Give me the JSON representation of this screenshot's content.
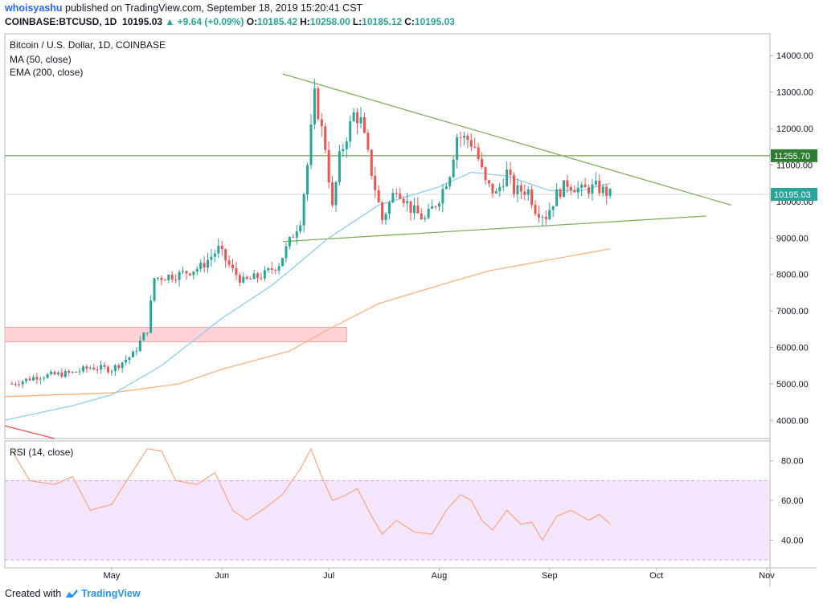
{
  "header": {
    "author": "whoisyashu",
    "published": "published on TradingView.com, September 18, 2019 15:20:41 CST",
    "symbol": "COINBASE:BTCUSD, 1D",
    "last": "10195.03",
    "change": "▲ +9.64 (+0.09%)",
    "o_label": "O:",
    "o_value": "10185.42",
    "h_label": "H:",
    "h_value": "10258.00",
    "l_label": "L:",
    "l_value": "10185.12",
    "c_label": "C:",
    "c_value": "10195.03"
  },
  "footer": {
    "created_with": "Created with",
    "brand": "TradingView"
  },
  "colors": {
    "up": "#26a69a",
    "down": "#ef5350",
    "ma50": "#8fcdf0",
    "ema200": "#ffb07a",
    "trendline": "#7fae5c",
    "resistance": "#4f8f2f",
    "support_zone": "#ffcdd2",
    "rsi": "#ffa47a",
    "rsi_band": "#f3e5fb"
  },
  "chart_data": [
    {
      "type": "candlestick",
      "title": "Bitcoin / U.S. Dollar, 1D, COINBASE",
      "indicators": [
        "MA (50, close)",
        "EMA (200, close)"
      ],
      "x_labels": [
        "May",
        "Jun",
        "Jul",
        "Aug",
        "Sep",
        "Oct",
        "Nov"
      ],
      "y_ticks": [
        4000,
        5000,
        6000,
        7000,
        8000,
        9000,
        10000,
        11000,
        12000,
        13000,
        14000
      ],
      "y_tick_labels": [
        "4000.00",
        "5000.00",
        "6000.00",
        "7000.00",
        "8000.00",
        "9000.00",
        "10000.00",
        "11000.00",
        "12000.00",
        "13000.00",
        "14000.00"
      ],
      "ylim": [
        3500,
        14600
      ],
      "last_price": 10195.03,
      "last_price_label": "10195.03",
      "resistance_level": 11255.7,
      "resistance_label": "11255.70",
      "support_zone": [
        6150,
        6550
      ],
      "anchors": [
        [
          "2019-04-03",
          5000
        ],
        [
          "2019-04-10",
          5200
        ],
        [
          "2019-04-20",
          5300
        ],
        [
          "2019-04-25",
          5450
        ],
        [
          "2019-05-01",
          5400
        ],
        [
          "2019-05-07",
          5800
        ],
        [
          "2019-05-11",
          6500
        ],
        [
          "2019-05-13",
          7900
        ],
        [
          "2019-05-20",
          8000
        ],
        [
          "2019-05-26",
          8200
        ],
        [
          "2019-05-31",
          8700
        ],
        [
          "2019-06-04",
          8100
        ],
        [
          "2019-06-07",
          7800
        ],
        [
          "2019-06-13",
          8000
        ],
        [
          "2019-06-17",
          8300
        ],
        [
          "2019-06-20",
          8900
        ],
        [
          "2019-06-23",
          9500
        ],
        [
          "2019-06-25",
          11000
        ],
        [
          "2019-06-27",
          12900
        ],
        [
          "2019-06-30",
          11500
        ],
        [
          "2019-07-02",
          9800
        ],
        [
          "2019-07-04",
          11200
        ],
        [
          "2019-07-08",
          12400
        ],
        [
          "2019-07-10",
          12200
        ],
        [
          "2019-07-13",
          10800
        ],
        [
          "2019-07-16",
          9500
        ],
        [
          "2019-07-20",
          10400
        ],
        [
          "2019-07-24",
          9800
        ],
        [
          "2019-07-28",
          9500
        ],
        [
          "2019-08-01",
          10100
        ],
        [
          "2019-08-04",
          10800
        ],
        [
          "2019-08-06",
          11800
        ],
        [
          "2019-08-09",
          11700
        ],
        [
          "2019-08-11",
          11500
        ],
        [
          "2019-08-14",
          10500
        ],
        [
          "2019-08-17",
          10200
        ],
        [
          "2019-08-20",
          10800
        ],
        [
          "2019-08-22",
          10300
        ],
        [
          "2019-08-26",
          10300
        ],
        [
          "2019-08-28",
          9800
        ],
        [
          "2019-08-31",
          9600
        ],
        [
          "2019-09-03",
          10200
        ],
        [
          "2019-09-06",
          10500
        ],
        [
          "2019-09-10",
          10300
        ],
        [
          "2019-09-14",
          10400
        ],
        [
          "2019-09-18",
          10195
        ]
      ],
      "ma50": [
        [
          "2019-04-01",
          4000
        ],
        [
          "2019-04-20",
          4400
        ],
        [
          "2019-05-01",
          4700
        ],
        [
          "2019-05-15",
          5500
        ],
        [
          "2019-06-01",
          6800
        ],
        [
          "2019-06-15",
          7700
        ],
        [
          "2019-07-01",
          9000
        ],
        [
          "2019-07-15",
          9900
        ],
        [
          "2019-08-01",
          10400
        ],
        [
          "2019-08-10",
          10800
        ],
        [
          "2019-08-20",
          10700
        ],
        [
          "2019-09-01",
          10300
        ],
        [
          "2019-09-10",
          10300
        ],
        [
          "2019-09-18",
          10500
        ]
      ],
      "ema200": [
        [
          "2019-04-01",
          4650
        ],
        [
          "2019-05-01",
          4750
        ],
        [
          "2019-05-20",
          5000
        ],
        [
          "2019-06-01",
          5400
        ],
        [
          "2019-06-20",
          5900
        ],
        [
          "2019-07-01",
          6500
        ],
        [
          "2019-07-15",
          7200
        ],
        [
          "2019-08-01",
          7700
        ],
        [
          "2019-08-15",
          8100
        ],
        [
          "2019-09-01",
          8400
        ],
        [
          "2019-09-18",
          8700
        ]
      ],
      "trendlines": [
        {
          "from": [
            "2019-06-18",
            13500
          ],
          "to": [
            "2019-10-22",
            9900
          ]
        },
        {
          "from": [
            "2019-06-18",
            8900
          ],
          "to": [
            "2019-10-15",
            9600
          ]
        },
        {
          "from": [
            "2019-04-01",
            3850
          ],
          "to": [
            "2019-04-15",
            3500
          ]
        }
      ]
    },
    {
      "type": "line",
      "title": "RSI (14, close)",
      "y_ticks": [
        40,
        60,
        80
      ],
      "y_tick_labels": [
        "40.00",
        "60.00",
        "80.00"
      ],
      "ylim": [
        26,
        90
      ],
      "band": [
        30,
        70
      ],
      "values": [
        [
          "2019-04-03",
          85
        ],
        [
          "2019-04-08",
          70
        ],
        [
          "2019-04-15",
          68
        ],
        [
          "2019-04-20",
          72
        ],
        [
          "2019-04-25",
          55
        ],
        [
          "2019-05-01",
          58
        ],
        [
          "2019-05-06",
          72
        ],
        [
          "2019-05-11",
          86
        ],
        [
          "2019-05-15",
          85
        ],
        [
          "2019-05-19",
          70
        ],
        [
          "2019-05-25",
          68
        ],
        [
          "2019-05-30",
          74
        ],
        [
          "2019-06-04",
          55
        ],
        [
          "2019-06-08",
          50
        ],
        [
          "2019-06-13",
          56
        ],
        [
          "2019-06-18",
          63
        ],
        [
          "2019-06-23",
          76
        ],
        [
          "2019-06-26",
          86
        ],
        [
          "2019-06-29",
          72
        ],
        [
          "2019-07-02",
          60
        ],
        [
          "2019-07-05",
          62
        ],
        [
          "2019-07-09",
          66
        ],
        [
          "2019-07-13",
          52
        ],
        [
          "2019-07-16",
          43
        ],
        [
          "2019-07-20",
          50
        ],
        [
          "2019-07-25",
          44
        ],
        [
          "2019-07-30",
          43
        ],
        [
          "2019-08-03",
          55
        ],
        [
          "2019-08-07",
          63
        ],
        [
          "2019-08-10",
          60
        ],
        [
          "2019-08-13",
          50
        ],
        [
          "2019-08-16",
          45
        ],
        [
          "2019-08-20",
          55
        ],
        [
          "2019-08-24",
          48
        ],
        [
          "2019-08-27",
          49
        ],
        [
          "2019-08-30",
          40
        ],
        [
          "2019-09-03",
          52
        ],
        [
          "2019-09-07",
          55
        ],
        [
          "2019-09-12",
          50
        ],
        [
          "2019-09-15",
          53
        ],
        [
          "2019-09-18",
          48
        ]
      ]
    }
  ]
}
